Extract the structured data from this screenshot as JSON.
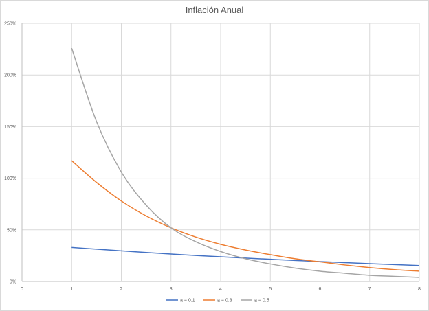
{
  "chart_data": {
    "type": "line",
    "title": "Inflación Anual",
    "xlabel": "",
    "ylabel": "",
    "xlim": [
      0,
      8
    ],
    "ylim": [
      0,
      2.5
    ],
    "x_ticks": [
      0,
      1,
      2,
      3,
      4,
      5,
      6,
      7,
      8
    ],
    "x_tick_labels": [
      "0",
      "1",
      "2",
      "3",
      "4",
      "5",
      "6",
      "7",
      "8"
    ],
    "y_ticks": [
      0,
      0.5,
      1.0,
      1.5,
      2.0,
      2.5
    ],
    "y_tick_labels": [
      "0%",
      "50%",
      "100%",
      "150%",
      "200%",
      "250%"
    ],
    "grid": true,
    "legend_position": "bottom",
    "x": [
      1,
      1.5,
      2,
      2.5,
      3,
      3.5,
      4,
      4.5,
      5,
      5.5,
      6,
      6.5,
      7,
      7.5,
      8
    ],
    "series": [
      {
        "name": "a = 0.1",
        "color": "#4472c4",
        "values": [
          0.33,
          0.313,
          0.297,
          0.281,
          0.266,
          0.252,
          0.239,
          0.227,
          0.215,
          0.204,
          0.193,
          0.183,
          0.173,
          0.164,
          0.155
        ]
      },
      {
        "name": "a = 0.3",
        "color": "#ed7d31",
        "values": [
          1.17,
          0.96,
          0.78,
          0.635,
          0.52,
          0.43,
          0.36,
          0.305,
          0.26,
          0.22,
          0.19,
          0.16,
          0.135,
          0.115,
          0.1
        ]
      },
      {
        "name": "a = 0.5",
        "color": "#a5a5a5",
        "values": [
          2.26,
          1.55,
          1.06,
          0.74,
          0.52,
          0.385,
          0.29,
          0.22,
          0.17,
          0.13,
          0.1,
          0.08,
          0.06,
          0.05,
          0.04
        ]
      }
    ]
  }
}
